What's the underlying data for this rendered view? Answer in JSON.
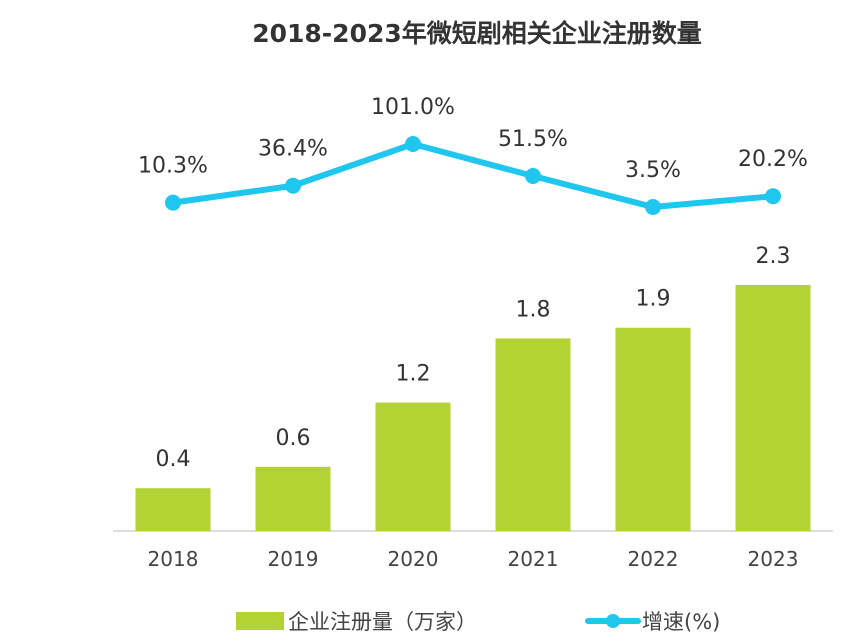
{
  "chart_data": {
    "type": "bar+line",
    "title": "2018-2023年微短剧相关企业注册数量",
    "categories": [
      "2018",
      "2019",
      "2020",
      "2021",
      "2022",
      "2023"
    ],
    "series": [
      {
        "name": "企业注册量（万家）",
        "type": "bar",
        "values": [
          0.4,
          0.6,
          1.2,
          1.8,
          1.9,
          2.3
        ],
        "labels": [
          "0.4",
          "0.6",
          "1.2",
          "1.8",
          "1.9",
          "2.3"
        ],
        "color": "#b3d335"
      },
      {
        "name": "增速(%)",
        "type": "line",
        "values": [
          10.3,
          36.4,
          101.0,
          51.5,
          3.5,
          20.2
        ],
        "labels": [
          "10.3%",
          "36.4%",
          "101.0%",
          "51.5%",
          "3.5%",
          "20.2%"
        ],
        "color": "#1fc6ee"
      }
    ],
    "legend": "bottom",
    "grid": false
  }
}
